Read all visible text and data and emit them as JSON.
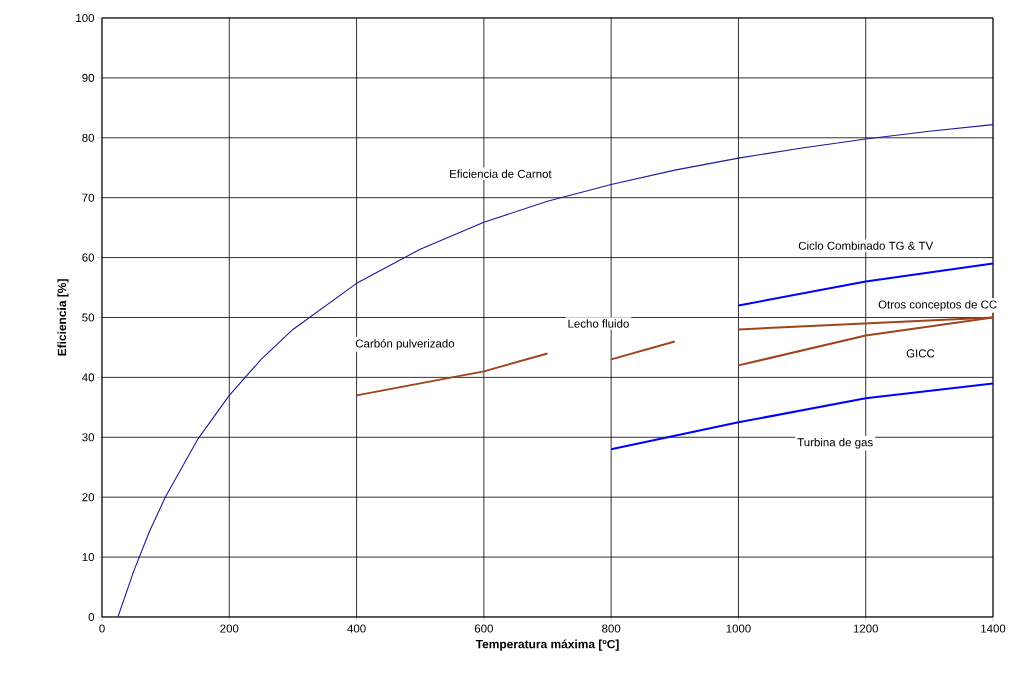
{
  "chart_data": {
    "type": "line",
    "xlabel": "Temperatura máxima [ºC]",
    "ylabel": "Eficiencia [%]",
    "xlim": [
      0,
      1400
    ],
    "xticks": [
      0,
      200,
      400,
      600,
      800,
      1000,
      1200,
      1400
    ],
    "ylim": [
      0,
      100
    ],
    "yticks": [
      0,
      10,
      20,
      30,
      40,
      50,
      60,
      70,
      80,
      90,
      100
    ],
    "grid": true,
    "marker": "none",
    "line_style": "solid",
    "series": [
      {
        "name": "Eficiencia de Carnot",
        "color": "#1a1a9c",
        "x": [
          25,
          50,
          75,
          100,
          150,
          200,
          250,
          300,
          400,
          500,
          600,
          700,
          800,
          900,
          1000,
          1100,
          1200,
          1300,
          1400
        ],
        "values": [
          0,
          7.7,
          14.4,
          20.1,
          29.6,
          37.0,
          43.0,
          48.0,
          55.7,
          61.4,
          65.9,
          69.4,
          72.2,
          74.6,
          76.6,
          78.3,
          79.8,
          81.1,
          82.2
        ]
      },
      {
        "name": "Carbón pulverizado",
        "color": "#a0441c",
        "x": [
          400,
          550,
          600,
          700
        ],
        "values": [
          37,
          40,
          41,
          44
        ]
      },
      {
        "name": "Lecho fluido",
        "color": "#a0441c",
        "x": [
          800,
          900
        ],
        "values": [
          43,
          46
        ]
      },
      {
        "name": "Ciclo Combinado TG & TV",
        "color": "#0000ff",
        "x": [
          1000,
          1200,
          1400
        ],
        "values": [
          52,
          56,
          59
        ]
      },
      {
        "name": "Otros conceptos de CC",
        "color": "#a0441c",
        "x": [
          1000,
          1400
        ],
        "values": [
          48,
          50
        ]
      },
      {
        "name": "GICC",
        "color": "#a0441c",
        "x": [
          1000,
          1200,
          1400
        ],
        "values": [
          42,
          47,
          50
        ]
      },
      {
        "name": "Turbina de gas",
        "color": "#0000ff",
        "x": [
          800,
          1000,
          1200,
          1400
        ],
        "values": [
          28,
          32.5,
          36.5,
          39
        ]
      }
    ]
  }
}
